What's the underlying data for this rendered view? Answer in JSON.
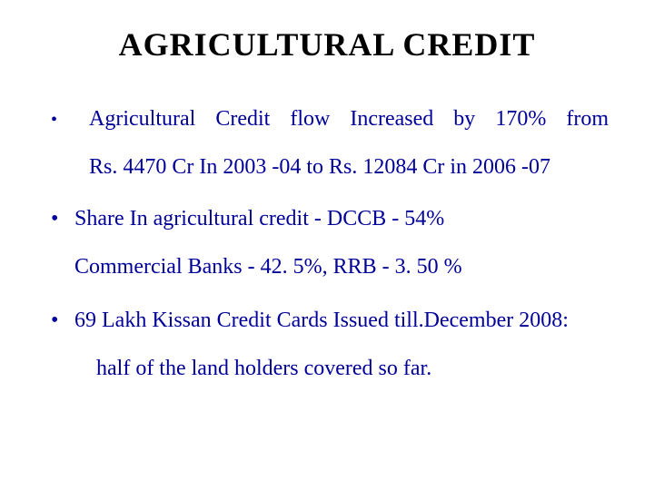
{
  "title": "AGRICULTURAL CREDIT",
  "bullets": {
    "b1": {
      "line1": "Agricultural Credit flow Increased by 170% from",
      "line2": "Rs. 4470 Cr In 2003 -04 to Rs. 12084 Cr in 2006 -07"
    },
    "b2": {
      "line1": "Share In agricultural credit - DCCB - 54%",
      "line2": "Commercial Banks - 42. 5%, RRB - 3. 50 %"
    },
    "b3": {
      "line1": "69 Lakh Kissan Credit Cards Issued till.December 2008:",
      "line2": "half of the land holders covered so far."
    }
  },
  "colors": {
    "text": "#000099",
    "title": "#000000",
    "background": "#ffffff"
  },
  "typography": {
    "title_fontsize": 36,
    "body_fontsize": 24,
    "font_family": "Times New Roman"
  }
}
